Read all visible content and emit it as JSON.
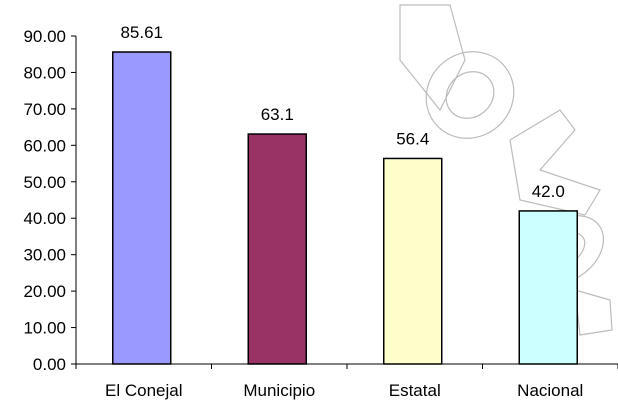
{
  "chart_data": {
    "type": "bar",
    "categories": [
      "El Conejal",
      "Municipio",
      "Estatal",
      "Nacional"
    ],
    "values": [
      85.61,
      63.1,
      56.4,
      42.0
    ],
    "data_labels": [
      "85.61",
      "63.1",
      "56.4",
      "42.0"
    ],
    "colors": [
      "#9999ff",
      "#993366",
      "#ffffcc",
      "#ccffff"
    ],
    "title": "",
    "xlabel": "",
    "ylabel": "",
    "ylim": [
      0,
      90
    ],
    "yticks": [
      "0.00",
      "10.00",
      "20.00",
      "30.00",
      "40.00",
      "50.00",
      "60.00",
      "70.00",
      "80.00",
      "90.00"
    ],
    "grid": false,
    "legend": "none"
  }
}
